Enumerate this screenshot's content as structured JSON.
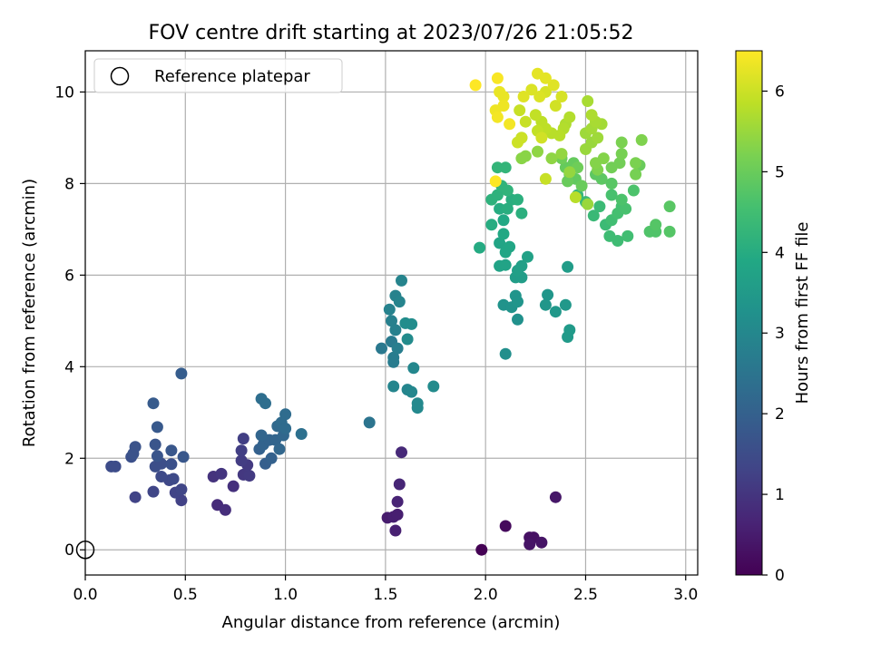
{
  "chart_data": {
    "type": "scatter",
    "title": "FOV centre drift starting at 2023/07/26 21:05:52",
    "xlabel": "Angular distance from reference (arcmin)",
    "ylabel": "Rotation from reference (arcmin)",
    "xlim": [
      0.0,
      3.06
    ],
    "ylim": [
      -0.55,
      10.9
    ],
    "xticks": [
      "0.0",
      "0.5",
      "1.0",
      "1.5",
      "2.0",
      "2.5",
      "3.0"
    ],
    "yticks": [
      "0",
      "2",
      "4",
      "6",
      "8",
      "10"
    ],
    "grid": true,
    "legend": {
      "placement": "top-left",
      "entries": [
        "Reference platepar"
      ]
    },
    "reference_point": {
      "x": 0.0,
      "y": 0.0,
      "marker": "open-circle"
    },
    "colorbar": {
      "label": "Hours from first FF file",
      "colormap": "viridis",
      "range": [
        0,
        6.5
      ],
      "ticks": [
        "0",
        "1",
        "2",
        "3",
        "4",
        "5",
        "6"
      ]
    },
    "points": [
      {
        "x": 1.98,
        "y": 0.0,
        "h": 0.0
      },
      {
        "x": 2.1,
        "y": 0.52,
        "h": 0.15
      },
      {
        "x": 2.22,
        "y": 0.27,
        "h": 0.3
      },
      {
        "x": 2.24,
        "y": 0.27,
        "h": 0.3
      },
      {
        "x": 2.22,
        "y": 0.12,
        "h": 0.35
      },
      {
        "x": 2.28,
        "y": 0.16,
        "h": 0.35
      },
      {
        "x": 2.35,
        "y": 1.15,
        "h": 0.4
      },
      {
        "x": 1.51,
        "y": 0.7,
        "h": 0.5
      },
      {
        "x": 1.54,
        "y": 0.72,
        "h": 0.55
      },
      {
        "x": 1.56,
        "y": 0.77,
        "h": 0.55
      },
      {
        "x": 1.55,
        "y": 0.42,
        "h": 0.6
      },
      {
        "x": 1.56,
        "y": 1.05,
        "h": 0.65
      },
      {
        "x": 1.57,
        "y": 1.43,
        "h": 0.7
      },
      {
        "x": 1.58,
        "y": 2.13,
        "h": 0.75
      },
      {
        "x": 0.66,
        "y": 0.98,
        "h": 0.8
      },
      {
        "x": 0.7,
        "y": 0.87,
        "h": 0.85
      },
      {
        "x": 0.74,
        "y": 1.39,
        "h": 0.9
      },
      {
        "x": 0.64,
        "y": 1.6,
        "h": 0.95
      },
      {
        "x": 0.68,
        "y": 1.66,
        "h": 1.0
      },
      {
        "x": 0.79,
        "y": 1.64,
        "h": 1.05
      },
      {
        "x": 0.82,
        "y": 1.62,
        "h": 1.1
      },
      {
        "x": 0.81,
        "y": 1.85,
        "h": 1.1
      },
      {
        "x": 0.78,
        "y": 1.95,
        "h": 1.15
      },
      {
        "x": 0.78,
        "y": 2.17,
        "h": 1.2
      },
      {
        "x": 0.79,
        "y": 2.43,
        "h": 1.2
      },
      {
        "x": 0.48,
        "y": 1.08,
        "h": 1.25
      },
      {
        "x": 0.25,
        "y": 1.15,
        "h": 1.3
      },
      {
        "x": 0.45,
        "y": 1.25,
        "h": 1.3
      },
      {
        "x": 0.48,
        "y": 1.32,
        "h": 1.35
      },
      {
        "x": 0.34,
        "y": 1.27,
        "h": 1.35
      },
      {
        "x": 0.42,
        "y": 1.52,
        "h": 1.4
      },
      {
        "x": 0.38,
        "y": 1.6,
        "h": 1.45
      },
      {
        "x": 0.44,
        "y": 1.55,
        "h": 1.45
      },
      {
        "x": 0.13,
        "y": 1.82,
        "h": 1.5
      },
      {
        "x": 0.15,
        "y": 1.82,
        "h": 1.5
      },
      {
        "x": 0.35,
        "y": 1.82,
        "h": 1.55
      },
      {
        "x": 0.38,
        "y": 1.88,
        "h": 1.55
      },
      {
        "x": 0.43,
        "y": 1.87,
        "h": 1.6
      },
      {
        "x": 0.23,
        "y": 2.03,
        "h": 1.6
      },
      {
        "x": 0.24,
        "y": 2.1,
        "h": 1.65
      },
      {
        "x": 0.25,
        "y": 2.25,
        "h": 1.65
      },
      {
        "x": 0.36,
        "y": 2.05,
        "h": 1.7
      },
      {
        "x": 0.35,
        "y": 2.3,
        "h": 1.7
      },
      {
        "x": 0.43,
        "y": 2.17,
        "h": 1.75
      },
      {
        "x": 0.49,
        "y": 2.03,
        "h": 1.75
      },
      {
        "x": 0.36,
        "y": 2.68,
        "h": 1.8
      },
      {
        "x": 0.34,
        "y": 3.2,
        "h": 1.85
      },
      {
        "x": 0.48,
        "y": 3.85,
        "h": 1.9
      },
      {
        "x": 0.9,
        "y": 1.88,
        "h": 1.95
      },
      {
        "x": 0.93,
        "y": 2.0,
        "h": 2.0
      },
      {
        "x": 0.87,
        "y": 2.2,
        "h": 2.0
      },
      {
        "x": 0.89,
        "y": 2.3,
        "h": 2.05
      },
      {
        "x": 0.92,
        "y": 2.4,
        "h": 2.05
      },
      {
        "x": 0.88,
        "y": 2.5,
        "h": 2.1
      },
      {
        "x": 0.95,
        "y": 2.4,
        "h": 2.1
      },
      {
        "x": 0.97,
        "y": 2.2,
        "h": 2.15
      },
      {
        "x": 0.99,
        "y": 2.5,
        "h": 2.15
      },
      {
        "x": 0.96,
        "y": 2.7,
        "h": 2.2
      },
      {
        "x": 0.98,
        "y": 2.78,
        "h": 2.25
      },
      {
        "x": 1.0,
        "y": 2.65,
        "h": 2.25
      },
      {
        "x": 1.0,
        "y": 2.96,
        "h": 2.3
      },
      {
        "x": 0.88,
        "y": 3.3,
        "h": 2.35
      },
      {
        "x": 0.9,
        "y": 3.2,
        "h": 2.35
      },
      {
        "x": 1.08,
        "y": 2.53,
        "h": 2.4
      },
      {
        "x": 1.42,
        "y": 2.78,
        "h": 2.5
      },
      {
        "x": 1.48,
        "y": 4.4,
        "h": 2.6
      },
      {
        "x": 1.53,
        "y": 4.55,
        "h": 2.65
      },
      {
        "x": 1.54,
        "y": 4.1,
        "h": 2.7
      },
      {
        "x": 1.54,
        "y": 4.2,
        "h": 2.7
      },
      {
        "x": 1.56,
        "y": 4.4,
        "h": 2.75
      },
      {
        "x": 1.53,
        "y": 5.0,
        "h": 2.8
      },
      {
        "x": 1.55,
        "y": 4.8,
        "h": 2.8
      },
      {
        "x": 1.52,
        "y": 5.25,
        "h": 2.85
      },
      {
        "x": 1.55,
        "y": 5.55,
        "h": 2.85
      },
      {
        "x": 1.57,
        "y": 5.42,
        "h": 2.9
      },
      {
        "x": 1.58,
        "y": 5.88,
        "h": 2.9
      },
      {
        "x": 1.54,
        "y": 3.57,
        "h": 2.95
      },
      {
        "x": 1.61,
        "y": 3.5,
        "h": 2.95
      },
      {
        "x": 1.63,
        "y": 3.45,
        "h": 3.0
      },
      {
        "x": 1.64,
        "y": 3.97,
        "h": 3.0
      },
      {
        "x": 1.66,
        "y": 3.1,
        "h": 3.05
      },
      {
        "x": 1.66,
        "y": 3.2,
        "h": 3.05
      },
      {
        "x": 1.74,
        "y": 3.57,
        "h": 3.1
      },
      {
        "x": 1.61,
        "y": 4.6,
        "h": 3.1
      },
      {
        "x": 1.6,
        "y": 4.95,
        "h": 3.15
      },
      {
        "x": 1.63,
        "y": 4.93,
        "h": 3.15
      },
      {
        "x": 2.1,
        "y": 4.28,
        "h": 3.2
      },
      {
        "x": 2.16,
        "y": 5.03,
        "h": 3.25
      },
      {
        "x": 2.09,
        "y": 5.35,
        "h": 3.3
      },
      {
        "x": 2.13,
        "y": 5.3,
        "h": 3.3
      },
      {
        "x": 2.15,
        "y": 5.55,
        "h": 3.35
      },
      {
        "x": 2.16,
        "y": 5.42,
        "h": 3.35
      },
      {
        "x": 2.3,
        "y": 5.35,
        "h": 3.4
      },
      {
        "x": 2.31,
        "y": 5.57,
        "h": 3.4
      },
      {
        "x": 2.35,
        "y": 5.2,
        "h": 3.45
      },
      {
        "x": 2.4,
        "y": 5.35,
        "h": 3.45
      },
      {
        "x": 2.41,
        "y": 4.65,
        "h": 3.5
      },
      {
        "x": 2.42,
        "y": 4.8,
        "h": 3.5
      },
      {
        "x": 2.41,
        "y": 6.18,
        "h": 3.55
      },
      {
        "x": 2.15,
        "y": 5.95,
        "h": 3.6
      },
      {
        "x": 2.18,
        "y": 5.95,
        "h": 3.6
      },
      {
        "x": 2.18,
        "y": 6.2,
        "h": 3.65
      },
      {
        "x": 2.16,
        "y": 6.1,
        "h": 3.65
      },
      {
        "x": 2.21,
        "y": 6.4,
        "h": 3.7
      },
      {
        "x": 2.07,
        "y": 6.2,
        "h": 3.75
      },
      {
        "x": 2.1,
        "y": 6.22,
        "h": 3.75
      },
      {
        "x": 2.07,
        "y": 6.7,
        "h": 3.8
      },
      {
        "x": 2.1,
        "y": 6.5,
        "h": 3.85
      },
      {
        "x": 2.12,
        "y": 6.62,
        "h": 3.85
      },
      {
        "x": 2.09,
        "y": 6.9,
        "h": 3.9
      },
      {
        "x": 2.09,
        "y": 7.2,
        "h": 3.9
      },
      {
        "x": 1.97,
        "y": 6.6,
        "h": 3.95
      },
      {
        "x": 2.03,
        "y": 7.1,
        "h": 4.0
      },
      {
        "x": 2.07,
        "y": 7.45,
        "h": 4.0
      },
      {
        "x": 2.11,
        "y": 7.45,
        "h": 4.05
      },
      {
        "x": 2.13,
        "y": 7.65,
        "h": 4.05
      },
      {
        "x": 2.16,
        "y": 7.65,
        "h": 4.1
      },
      {
        "x": 2.18,
        "y": 7.35,
        "h": 4.1
      },
      {
        "x": 2.03,
        "y": 7.65,
        "h": 4.15
      },
      {
        "x": 2.06,
        "y": 7.75,
        "h": 4.15
      },
      {
        "x": 2.08,
        "y": 7.95,
        "h": 4.2
      },
      {
        "x": 2.11,
        "y": 7.85,
        "h": 4.2
      },
      {
        "x": 2.1,
        "y": 8.35,
        "h": 4.25
      },
      {
        "x": 2.06,
        "y": 8.35,
        "h": 4.25
      },
      {
        "x": 2.46,
        "y": 7.75,
        "h": 4.3
      },
      {
        "x": 2.5,
        "y": 7.6,
        "h": 4.35
      },
      {
        "x": 2.54,
        "y": 7.3,
        "h": 4.35
      },
      {
        "x": 2.57,
        "y": 7.5,
        "h": 4.4
      },
      {
        "x": 2.6,
        "y": 7.1,
        "h": 4.4
      },
      {
        "x": 2.62,
        "y": 6.85,
        "h": 4.45
      },
      {
        "x": 2.66,
        "y": 6.75,
        "h": 4.45
      },
      {
        "x": 2.71,
        "y": 6.85,
        "h": 4.5
      },
      {
        "x": 2.63,
        "y": 7.2,
        "h": 4.5
      },
      {
        "x": 2.66,
        "y": 7.35,
        "h": 4.55
      },
      {
        "x": 2.68,
        "y": 7.5,
        "h": 4.55
      },
      {
        "x": 2.7,
        "y": 7.45,
        "h": 4.6
      },
      {
        "x": 2.63,
        "y": 7.75,
        "h": 4.6
      },
      {
        "x": 2.68,
        "y": 7.65,
        "h": 4.65
      },
      {
        "x": 2.74,
        "y": 7.85,
        "h": 4.65
      },
      {
        "x": 2.82,
        "y": 6.95,
        "h": 4.7
      },
      {
        "x": 2.85,
        "y": 6.95,
        "h": 4.7
      },
      {
        "x": 2.85,
        "y": 7.1,
        "h": 4.75
      },
      {
        "x": 2.92,
        "y": 6.95,
        "h": 4.75
      },
      {
        "x": 2.92,
        "y": 7.5,
        "h": 4.8
      },
      {
        "x": 2.63,
        "y": 8.0,
        "h": 4.8
      },
      {
        "x": 2.58,
        "y": 8.1,
        "h": 4.85
      },
      {
        "x": 2.55,
        "y": 8.2,
        "h": 4.85
      },
      {
        "x": 2.45,
        "y": 8.1,
        "h": 4.9
      },
      {
        "x": 2.42,
        "y": 8.2,
        "h": 4.9
      },
      {
        "x": 2.4,
        "y": 8.35,
        "h": 4.95
      },
      {
        "x": 2.44,
        "y": 8.45,
        "h": 4.95
      },
      {
        "x": 2.41,
        "y": 8.05,
        "h": 5.0
      },
      {
        "x": 2.48,
        "y": 7.95,
        "h": 5.0
      },
      {
        "x": 2.38,
        "y": 8.55,
        "h": 5.05
      },
      {
        "x": 2.46,
        "y": 8.35,
        "h": 5.05
      },
      {
        "x": 2.63,
        "y": 8.35,
        "h": 5.1
      },
      {
        "x": 2.67,
        "y": 8.45,
        "h": 5.1
      },
      {
        "x": 2.68,
        "y": 8.65,
        "h": 5.15
      },
      {
        "x": 2.75,
        "y": 8.2,
        "h": 5.15
      },
      {
        "x": 2.75,
        "y": 8.45,
        "h": 5.2
      },
      {
        "x": 2.68,
        "y": 8.9,
        "h": 5.2
      },
      {
        "x": 2.78,
        "y": 8.95,
        "h": 5.25
      },
      {
        "x": 2.56,
        "y": 8.3,
        "h": 5.25
      },
      {
        "x": 2.59,
        "y": 8.55,
        "h": 5.3
      },
      {
        "x": 2.55,
        "y": 8.45,
        "h": 5.3
      },
      {
        "x": 2.2,
        "y": 8.6,
        "h": 5.35
      },
      {
        "x": 2.18,
        "y": 8.55,
        "h": 5.35
      },
      {
        "x": 2.26,
        "y": 8.7,
        "h": 5.4
      },
      {
        "x": 2.33,
        "y": 8.55,
        "h": 5.4
      },
      {
        "x": 2.38,
        "y": 8.65,
        "h": 5.45
      },
      {
        "x": 2.42,
        "y": 8.25,
        "h": 5.45
      },
      {
        "x": 2.5,
        "y": 8.75,
        "h": 5.5
      },
      {
        "x": 2.53,
        "y": 8.9,
        "h": 5.5
      },
      {
        "x": 2.5,
        "y": 9.1,
        "h": 5.55
      },
      {
        "x": 2.56,
        "y": 9.0,
        "h": 5.55
      },
      {
        "x": 2.53,
        "y": 9.2,
        "h": 5.6
      },
      {
        "x": 2.58,
        "y": 9.3,
        "h": 5.6
      },
      {
        "x": 2.55,
        "y": 9.35,
        "h": 5.65
      },
      {
        "x": 2.51,
        "y": 9.8,
        "h": 5.65
      },
      {
        "x": 2.53,
        "y": 9.5,
        "h": 5.7
      },
      {
        "x": 2.4,
        "y": 9.3,
        "h": 5.7
      },
      {
        "x": 2.42,
        "y": 9.45,
        "h": 5.75
      },
      {
        "x": 2.39,
        "y": 9.2,
        "h": 5.75
      },
      {
        "x": 2.37,
        "y": 9.05,
        "h": 5.8
      },
      {
        "x": 2.33,
        "y": 9.1,
        "h": 5.8
      },
      {
        "x": 2.3,
        "y": 9.2,
        "h": 5.85
      },
      {
        "x": 2.28,
        "y": 9.35,
        "h": 5.85
      },
      {
        "x": 2.25,
        "y": 9.5,
        "h": 5.9
      },
      {
        "x": 2.26,
        "y": 9.15,
        "h": 5.9
      },
      {
        "x": 2.2,
        "y": 9.35,
        "h": 5.95
      },
      {
        "x": 2.17,
        "y": 9.6,
        "h": 5.95
      },
      {
        "x": 2.18,
        "y": 9.0,
        "h": 6.0
      },
      {
        "x": 2.16,
        "y": 8.9,
        "h": 6.0
      },
      {
        "x": 2.28,
        "y": 9.0,
        "h": 6.05
      },
      {
        "x": 2.35,
        "y": 9.7,
        "h": 6.05
      },
      {
        "x": 2.38,
        "y": 9.9,
        "h": 6.1
      },
      {
        "x": 2.3,
        "y": 10.0,
        "h": 6.1
      },
      {
        "x": 2.27,
        "y": 9.9,
        "h": 6.15
      },
      {
        "x": 2.23,
        "y": 10.05,
        "h": 6.15
      },
      {
        "x": 2.19,
        "y": 9.9,
        "h": 6.2
      },
      {
        "x": 2.34,
        "y": 10.15,
        "h": 6.2
      },
      {
        "x": 2.3,
        "y": 10.3,
        "h": 6.25
      },
      {
        "x": 2.26,
        "y": 10.4,
        "h": 6.25
      },
      {
        "x": 2.09,
        "y": 9.9,
        "h": 6.3
      },
      {
        "x": 2.07,
        "y": 10.0,
        "h": 6.3
      },
      {
        "x": 2.09,
        "y": 9.7,
        "h": 6.35
      },
      {
        "x": 2.05,
        "y": 9.6,
        "h": 6.35
      },
      {
        "x": 2.06,
        "y": 9.45,
        "h": 6.4
      },
      {
        "x": 2.12,
        "y": 9.3,
        "h": 6.4
      },
      {
        "x": 2.06,
        "y": 10.3,
        "h": 6.45
      },
      {
        "x": 1.95,
        "y": 10.15,
        "h": 6.5
      },
      {
        "x": 2.05,
        "y": 8.05,
        "h": 6.5
      },
      {
        "x": 2.3,
        "y": 8.1,
        "h": 5.95
      },
      {
        "x": 2.45,
        "y": 7.7,
        "h": 5.8
      },
      {
        "x": 2.51,
        "y": 7.55,
        "h": 5.5
      },
      {
        "x": 2.77,
        "y": 8.4,
        "h": 5.0
      },
      {
        "x": 2.18,
        "y": 9.0,
        "h": 5.2
      }
    ]
  }
}
